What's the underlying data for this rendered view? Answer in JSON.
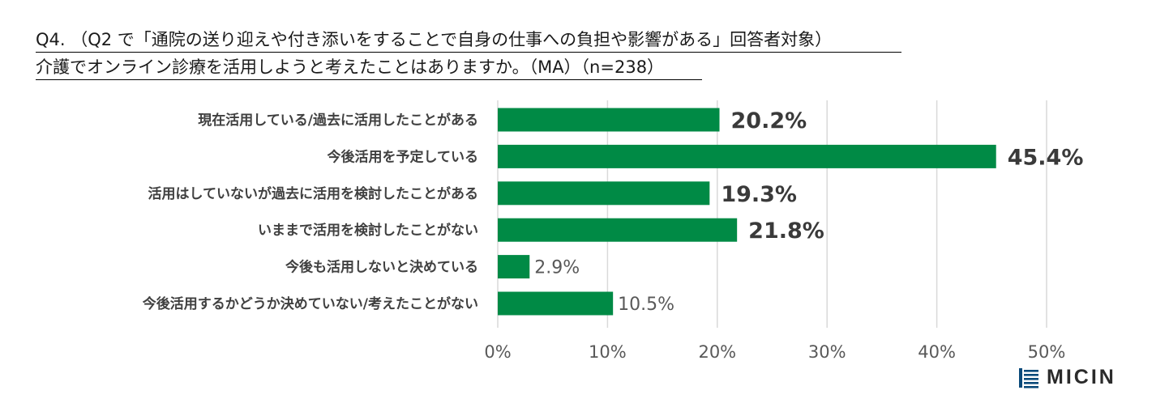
{
  "title": {
    "line1": "Q4. （Q2 で「通院の送り迎えや付き添いをすることで自身の仕事への負担や影響がある」回答者対象）",
    "line2": "介護でオンライン診療を活用しようと考えたことはありますか。（MA）（n=238）"
  },
  "chart_data": {
    "type": "bar",
    "orientation": "horizontal",
    "categories": [
      "現在活用している/過去に活用したことがある",
      "今後活用を予定している",
      "活用はしていないが過去に活用を検討したことがある",
      "いままで活用を検討したことがない",
      "今後も活用しないと決めている",
      "今後活用するかどうか決めていない/考えたことがない"
    ],
    "values": [
      20.2,
      45.4,
      19.3,
      21.8,
      2.9,
      10.5
    ],
    "value_labels": [
      "20.2%",
      "45.4%",
      "19.3%",
      "21.8%",
      "2.9%",
      "10.5%"
    ],
    "xlim": [
      0,
      50
    ],
    "x_ticks": [
      0,
      10,
      20,
      30,
      40,
      50
    ],
    "x_tick_labels": [
      "0%",
      "10%",
      "20%",
      "30%",
      "40%",
      "50%"
    ],
    "grid": true,
    "bar_color": "#008a45"
  },
  "logo": {
    "text": "MICIN",
    "color": "#0a4a7a"
  }
}
